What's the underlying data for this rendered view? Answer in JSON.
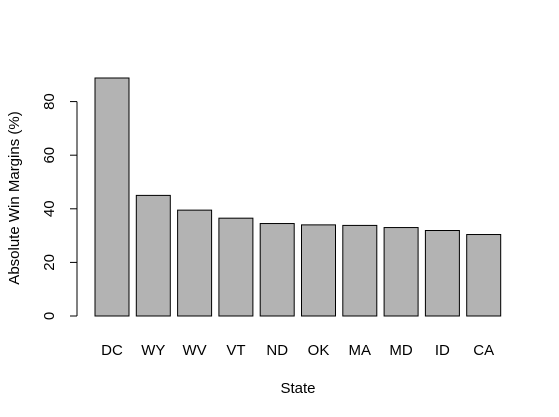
{
  "chart_data": {
    "type": "bar",
    "categories": [
      "DC",
      "WY",
      "WV",
      "VT",
      "ND",
      "OK",
      "MA",
      "MD",
      "ID",
      "CA"
    ],
    "values": [
      88.8,
      45.0,
      39.5,
      36.5,
      34.5,
      34.0,
      33.8,
      33.0,
      31.9,
      30.4
    ],
    "title": "",
    "xlabel": "State",
    "ylabel": "Absolute Win Margins (%)",
    "ylim": [
      0,
      88.8
    ],
    "yticks": [
      "0",
      "20",
      "40",
      "60",
      "80"
    ],
    "grid": false,
    "colors": {
      "bar_fill": "#b3b3b3",
      "bar_stroke": "#000000",
      "axis": "#000000"
    }
  }
}
